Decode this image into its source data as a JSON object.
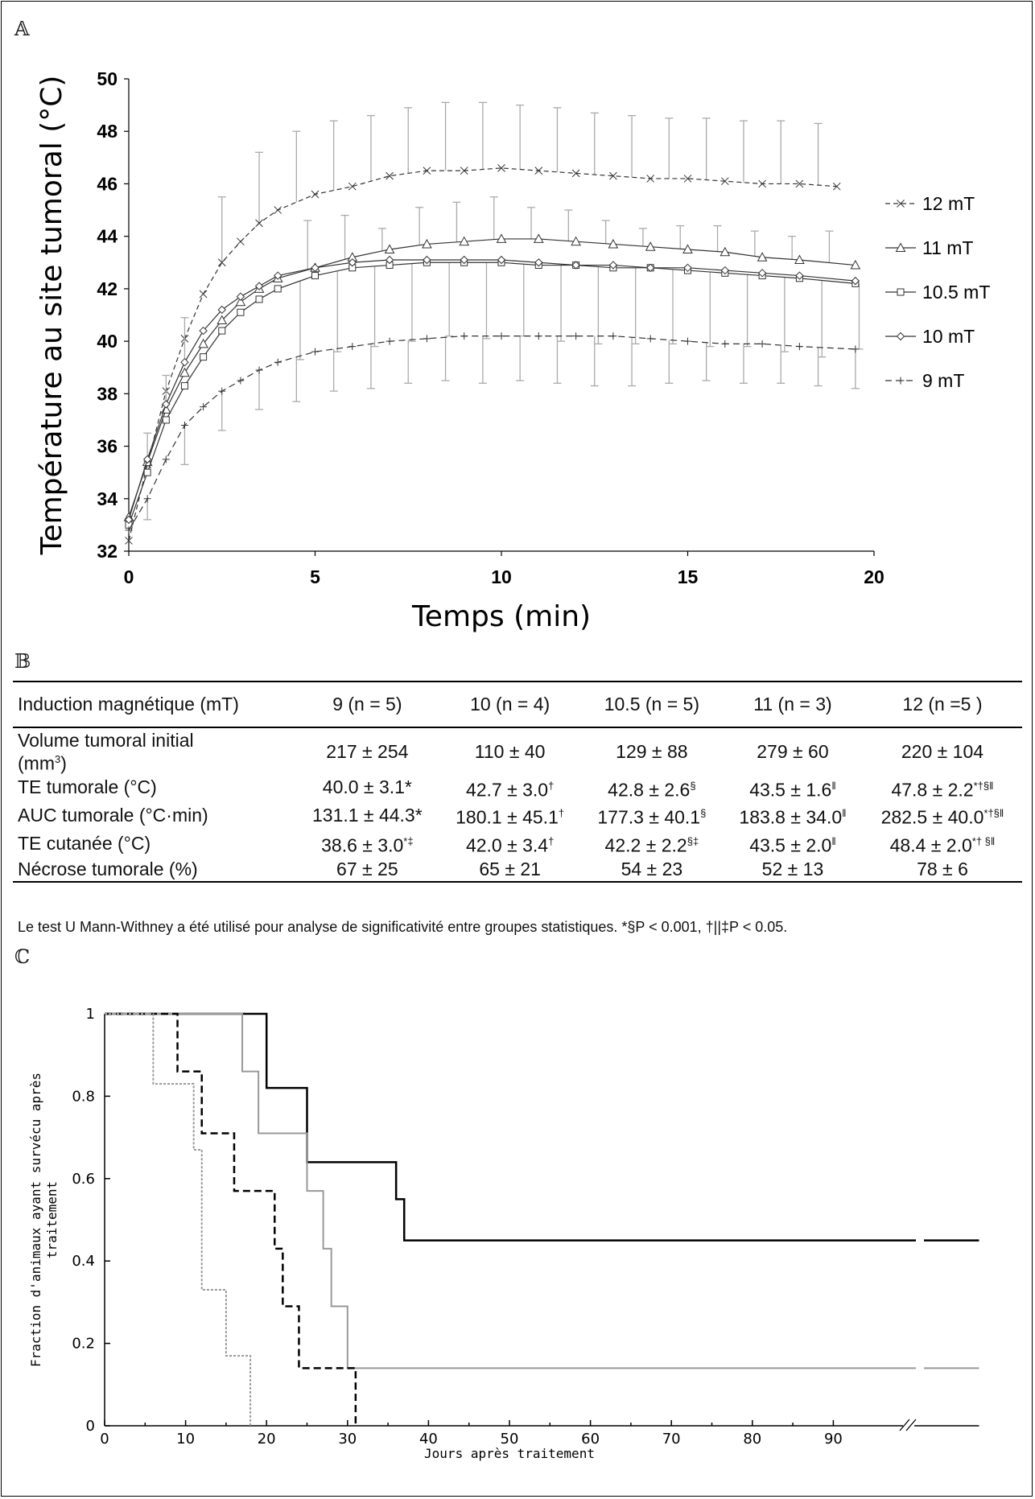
{
  "panels": {
    "a": "𝔸",
    "b": "𝔹",
    "c": "ℂ"
  },
  "chart_data": [
    {
      "type": "line",
      "xlabel": "Temps (min)",
      "ylabel": "Température au site tumoral (°C)",
      "xlim": [
        0,
        20
      ],
      "ylim": [
        32,
        50
      ],
      "xticks": [
        0,
        5,
        10,
        15,
        20
      ],
      "yticks": [
        32,
        34,
        36,
        38,
        40,
        42,
        44,
        46,
        48,
        50
      ],
      "legend_position": "right",
      "series": [
        {
          "name": "12 mT",
          "marker": "x",
          "dash": "6,4",
          "x": [
            0,
            0.5,
            1,
            1.5,
            2,
            2.5,
            3,
            3.5,
            4,
            5,
            6,
            7,
            8,
            9,
            10,
            11,
            12,
            13,
            14,
            15,
            16,
            17,
            18,
            19
          ],
          "y": [
            32.4,
            35.3,
            38.1,
            40.1,
            41.8,
            43.0,
            43.8,
            44.5,
            45.0,
            45.6,
            45.9,
            46.3,
            46.5,
            46.5,
            46.6,
            46.5,
            46.4,
            46.3,
            46.2,
            46.2,
            46.1,
            46.0,
            46.0,
            45.9
          ],
          "err_x": [
            2.5,
            3.5,
            4.5,
            5.5,
            6.5,
            7.5,
            8.5,
            9.5,
            10.5,
            11.5,
            12.5,
            13.5,
            14.5,
            15.5,
            16.5,
            17.5,
            18.5
          ],
          "err_hi": [
            45.5,
            47.2,
            48.0,
            48.4,
            48.6,
            48.9,
            49.1,
            49.1,
            49.0,
            48.9,
            48.7,
            48.6,
            48.5,
            48.5,
            48.4,
            48.4,
            48.3
          ]
        },
        {
          "name": "11 mT",
          "marker": "triangle",
          "dash": "",
          "x": [
            0,
            0.5,
            1,
            1.5,
            2,
            2.5,
            3,
            3.5,
            4,
            5,
            6,
            7,
            8,
            9,
            10,
            11,
            12,
            13,
            14,
            15,
            16,
            17,
            18,
            19.5
          ],
          "y": [
            33.3,
            35.4,
            37.4,
            38.8,
            39.9,
            40.8,
            41.5,
            42.0,
            42.4,
            42.8,
            43.2,
            43.5,
            43.7,
            43.8,
            43.9,
            43.9,
            43.8,
            43.7,
            43.6,
            43.5,
            43.4,
            43.2,
            43.1,
            42.9
          ],
          "err_x": [
            4.8,
            5.8,
            6.8,
            7.8,
            8.8,
            9.8,
            10.8,
            11.8,
            12.8,
            13.8,
            14.8,
            15.8,
            16.8,
            17.8,
            18.8
          ],
          "err_hi": [
            44.6,
            44.8,
            44.3,
            45.1,
            45.3,
            45.5,
            45.1,
            45.0,
            44.6,
            44.3,
            44.4,
            44.4,
            44.2,
            44.0,
            44.2
          ]
        },
        {
          "name": "10.5 mT",
          "marker": "square",
          "dash": "",
          "x": [
            0,
            0.5,
            1,
            1.5,
            2,
            2.5,
            3,
            3.5,
            4,
            5,
            6,
            7,
            8,
            9,
            10,
            11,
            12,
            13,
            14,
            15,
            16,
            17,
            18,
            19.5
          ],
          "y": [
            33.0,
            35.0,
            37.0,
            38.3,
            39.4,
            40.4,
            41.1,
            41.6,
            42.0,
            42.5,
            42.8,
            42.9,
            43.0,
            43.0,
            43.0,
            42.9,
            42.9,
            42.8,
            42.8,
            42.7,
            42.6,
            42.5,
            42.4,
            42.2
          ],
          "err_x": [
            4.6,
            5.6,
            6.6,
            7.6,
            8.6,
            9.6,
            10.6,
            11.6,
            12.6,
            13.6,
            14.6,
            15.6,
            16.6,
            17.6,
            18.6,
            19.6
          ],
          "err_lo": [
            39.3,
            39.6,
            39.8,
            40.0,
            40.2,
            40.1,
            40.2,
            40.0,
            39.9,
            39.9,
            39.9,
            39.8,
            39.8,
            39.6,
            39.4,
            39.7
          ]
        },
        {
          "name": "10 mT",
          "marker": "diamond",
          "dash": "",
          "x": [
            0,
            0.5,
            1,
            1.5,
            2,
            2.5,
            3,
            3.5,
            4,
            5,
            6,
            7,
            8,
            9,
            10,
            11,
            12,
            13,
            14,
            15,
            16,
            17,
            18,
            19.5
          ],
          "y": [
            33.2,
            35.5,
            37.6,
            39.2,
            40.4,
            41.2,
            41.7,
            42.1,
            42.5,
            42.8,
            43.0,
            43.1,
            43.1,
            43.1,
            43.1,
            43.0,
            42.9,
            42.9,
            42.8,
            42.8,
            42.7,
            42.6,
            42.5,
            42.3
          ],
          "err_x": [
            0.5,
            1,
            1.5
          ],
          "err_hi": [
            36.5,
            38.7,
            40.9
          ]
        },
        {
          "name": "9 mT",
          "marker": "plus",
          "dash": "8,5",
          "x": [
            0,
            0.5,
            1,
            1.5,
            2,
            2.5,
            3,
            3.5,
            4,
            5,
            6,
            7,
            8,
            9,
            10,
            11,
            12,
            13,
            14,
            15,
            16,
            17,
            18,
            19.5
          ],
          "y": [
            32.8,
            34.0,
            35.5,
            36.8,
            37.5,
            38.1,
            38.5,
            38.9,
            39.2,
            39.6,
            39.8,
            40.0,
            40.1,
            40.2,
            40.2,
            40.2,
            40.2,
            40.2,
            40.1,
            40.0,
            39.9,
            39.9,
            39.8,
            39.7
          ],
          "err_x": [
            0.5,
            1.5,
            2.5,
            3.5,
            4.5,
            5.5,
            6.5,
            7.5,
            8.5,
            9.5,
            10.5,
            11.5,
            12.5,
            13.5,
            14.5,
            15.5,
            16.5,
            17.5,
            18.5,
            19.5
          ],
          "err_lo": [
            33.2,
            35.3,
            36.6,
            37.4,
            37.7,
            38.1,
            38.2,
            38.4,
            38.5,
            38.4,
            38.5,
            38.4,
            38.3,
            38.3,
            38.4,
            38.5,
            38.4,
            38.4,
            38.3,
            38.2
          ]
        }
      ]
    },
    {
      "type": "table",
      "header": [
        "Induction magnétique (mT)",
        "9 (n = 5)",
        "10 (n = 4)",
        "10.5 (n = 5)",
        "11 (n = 3)",
        "12 (n =5 )"
      ],
      "rows": [
        {
          "label": "Volume tumoral initial",
          "label2": "(mm",
          "label2_sup": "3",
          "label2_end": ")",
          "cells": [
            [
              "217 ± 254",
              ""
            ],
            [
              "110 ± 40",
              ""
            ],
            [
              "129 ± 88",
              ""
            ],
            [
              "279 ± 60",
              ""
            ],
            [
              "220 ± 104",
              ""
            ]
          ]
        },
        {
          "label": "TE tumorale (°C)",
          "cells": [
            [
              "40.0 ± 3.1*",
              ""
            ],
            [
              "42.7 ± 3.0",
              "†"
            ],
            [
              "42.8 ± 2.6",
              "§"
            ],
            [
              "43.5 ± 1.6",
              "‖"
            ],
            [
              "47.8 ± 2.2",
              "*†§‖"
            ]
          ]
        },
        {
          "label": "AUC tumorale (°C·min)",
          "cells": [
            [
              "131.1 ± 44.3*",
              ""
            ],
            [
              "180.1 ± 45.1",
              "†"
            ],
            [
              "177.3 ± 40.1",
              "§"
            ],
            [
              "183.8 ± 34.0",
              "‖"
            ],
            [
              "282.5 ± 40.0",
              "*†§‖"
            ]
          ]
        },
        {
          "label": "TE cutanée (°C)",
          "cells": [
            [
              "38.6 ± 3.0",
              "*‡"
            ],
            [
              "42.0 ± 3.4",
              "†"
            ],
            [
              "42.2 ± 2.2",
              "§‡"
            ],
            [
              "43.5 ± 2.0",
              "‖"
            ],
            [
              "48.4 ± 2.0",
              "*† §‖"
            ]
          ]
        },
        {
          "label": "Nécrose tumorale (%)",
          "cells": [
            [
              "67 ± 25",
              ""
            ],
            [
              "65 ± 21",
              ""
            ],
            [
              "54 ± 23",
              ""
            ],
            [
              "52 ± 13",
              ""
            ],
            [
              "78 ± 6",
              ""
            ]
          ]
        }
      ],
      "footnote": "Le test U Mann-Withney a été utilisé pour analyse de significativité entre groupes statistiques. *§P < 0.001, †||‡P < 0.05."
    },
    {
      "type": "line",
      "step": true,
      "xlabel": "Jours après traitement",
      "ylabel": "Fraction d'animaux ayant survécu après traitement",
      "xlim": [
        0,
        108
      ],
      "ylim": [
        0,
        1
      ],
      "xticks": [
        0,
        10,
        20,
        30,
        40,
        50,
        60,
        70,
        80,
        90
      ],
      "yticks": [
        0,
        0.2,
        0.4,
        0.6,
        0.8,
        1
      ],
      "axis_break": "//",
      "series": [
        {
          "color": "#000000",
          "dash": "",
          "width": 2.5,
          "x": [
            0,
            20,
            25,
            36,
            37,
            108
          ],
          "y": [
            1,
            0.82,
            0.64,
            0.55,
            0.45,
            0.45
          ]
        },
        {
          "color": "#999999",
          "dash": "",
          "width": 2,
          "x": [
            0,
            17,
            19,
            25,
            27,
            28,
            30,
            108
          ],
          "y": [
            1,
            0.86,
            0.71,
            0.57,
            0.43,
            0.29,
            0.14,
            0.14
          ]
        },
        {
          "color": "#000000",
          "dash": "9,5",
          "width": 2.5,
          "x": [
            0,
            9,
            12,
            16,
            21,
            22,
            24,
            31
          ],
          "y": [
            1,
            0.86,
            0.71,
            0.57,
            0.43,
            0.29,
            0.14,
            0
          ]
        },
        {
          "color": "#999999",
          "dash": "3,2",
          "width": 2,
          "x": [
            0,
            6,
            11,
            12,
            15,
            18
          ],
          "y": [
            1,
            0.83,
            0.67,
            0.33,
            0.17,
            0
          ]
        }
      ]
    }
  ]
}
